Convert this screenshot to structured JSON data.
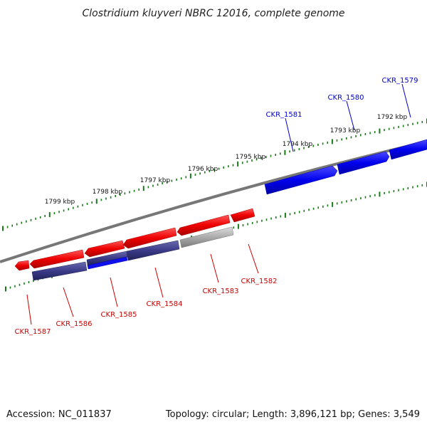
{
  "title": "Clostridium kluyveri NBRC 12016, complete genome",
  "footer": {
    "accession": "Accession: NC_011837",
    "summary": "Topology: circular; Length: 3,896,121 bp; Genes: 3,549"
  },
  "scale_labels": [
    "1792 kbp",
    "1793 kbp",
    "1794 kbp",
    "1795 kbp",
    "1796 kbp",
    "1797 kbp",
    "1798 kbp",
    "1799 kbp"
  ],
  "genes_forward": [
    {
      "label": "CKR_1579",
      "color": "#0000dd"
    },
    {
      "label": "CKR_1580",
      "color": "#0000dd"
    },
    {
      "label": "CKR_1581",
      "color": "#0000dd"
    }
  ],
  "genes_reverse": [
    {
      "label": "CKR_1582",
      "color": "#dd0000"
    },
    {
      "label": "CKR_1583",
      "color": "#dd0000"
    },
    {
      "label": "CKR_1584",
      "color": "#dd0000"
    },
    {
      "label": "CKR_1585",
      "color": "#dd0000"
    },
    {
      "label": "CKR_1586",
      "color": "#dd0000"
    },
    {
      "label": "CKR_1587",
      "color": "#dd0000"
    }
  ],
  "colors": {
    "forward_gene": "#0000ee",
    "reverse_gene": "#ee0000",
    "hit_dark": "#3a3a88",
    "hit_grey": "#aaaaaa",
    "ticks": "#1a7a1a",
    "backbone": "#777777"
  }
}
